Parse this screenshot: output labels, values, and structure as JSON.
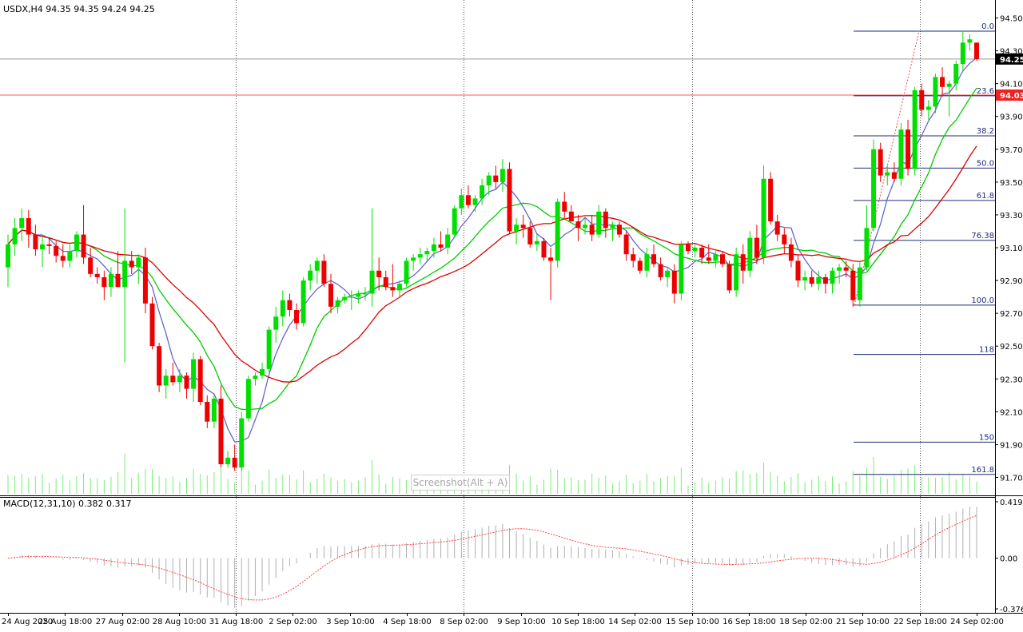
{
  "header": {
    "symbol_line": "USDX,H4  94.35 94.35 94.24 94.25",
    "macd_line": "MACD(12,31,10) 0.382 0.317"
  },
  "overlay": {
    "label": "Screenshot(Alt + A)"
  },
  "colors": {
    "bull": "#00e000",
    "bear": "#ee0000",
    "ma_fast": "#6666cc",
    "ma_mid": "#00cc00",
    "ma_slow": "#dd0000",
    "fib": "#1e2a78",
    "volume": "#77ee77",
    "hline_red": "#ff5555",
    "hline_gray": "#999999",
    "macd_hist": "#b0b0b0",
    "macd_signal": "#ff4444",
    "tag_current_bg": "#000000",
    "tag_red_bg": "#ee2222"
  },
  "chart_data": [
    {
      "type": "candlestick",
      "title": "USDX,H4",
      "ohlc_header": {
        "open": 94.35,
        "high": 94.35,
        "low": 94.24,
        "close": 94.25
      },
      "ylim": [
        91.6,
        94.6
      ],
      "y_ticks": [
        "94.50",
        "94.30",
        "94.10",
        "93.90",
        "93.70",
        "93.50",
        "93.30",
        "93.10",
        "92.90",
        "92.70",
        "92.50",
        "92.30",
        "92.10",
        "91.90",
        "91.70"
      ],
      "x_tick_labels": [
        "24 Aug 2020",
        "25 Aug 18:00",
        "27 Aug 02:00",
        "28 Aug 10:00",
        "31 Aug 18:00",
        "2 Sep 02:00",
        "3 Sep 10:00",
        "4 Sep 18:00",
        "8 Sep 02:00",
        "9 Sep 10:00",
        "10 Sep 18:00",
        "14 Sep 02:00",
        "15 Sep 10:00",
        "16 Sep 18:00",
        "18 Sep 02:00",
        "21 Sep 10:00",
        "22 Sep 18:00",
        "24 Sep 02:00"
      ],
      "price_tags": [
        {
          "label": "94.25",
          "value": 94.25,
          "kind": "current"
        },
        {
          "label": "94.03",
          "value": 94.03,
          "kind": "line"
        }
      ],
      "fibonacci": {
        "high": 94.42,
        "low": 92.75,
        "levels": [
          "0.0",
          "23.6",
          "38.2",
          "50.0",
          "61.8",
          "76.38",
          "100.0",
          "118",
          "150",
          "161.8"
        ]
      },
      "candles": [
        {
          "o": 92.98,
          "h": 93.18,
          "l": 92.86,
          "c": 93.12
        },
        {
          "o": 93.12,
          "h": 93.28,
          "l": 93.05,
          "c": 93.22
        },
        {
          "o": 93.22,
          "h": 93.34,
          "l": 93.14,
          "c": 93.28
        },
        {
          "o": 93.28,
          "h": 93.33,
          "l": 93.1,
          "c": 93.18
        },
        {
          "o": 93.18,
          "h": 93.24,
          "l": 93.05,
          "c": 93.09
        },
        {
          "o": 93.09,
          "h": 93.16,
          "l": 92.98,
          "c": 93.12
        },
        {
          "o": 93.12,
          "h": 93.16,
          "l": 93.06,
          "c": 93.11
        },
        {
          "o": 93.11,
          "h": 93.14,
          "l": 93.01,
          "c": 93.05
        },
        {
          "o": 93.05,
          "h": 93.12,
          "l": 92.98,
          "c": 93.02
        },
        {
          "o": 93.02,
          "h": 93.12,
          "l": 92.98,
          "c": 93.08
        },
        {
          "o": 93.08,
          "h": 93.2,
          "l": 93.04,
          "c": 93.18
        },
        {
          "o": 93.18,
          "h": 93.36,
          "l": 93.0,
          "c": 93.04
        },
        {
          "o": 93.04,
          "h": 93.1,
          "l": 92.92,
          "c": 92.94
        },
        {
          "o": 92.94,
          "h": 92.98,
          "l": 92.88,
          "c": 92.92
        },
        {
          "o": 92.92,
          "h": 92.96,
          "l": 92.78,
          "c": 92.86
        },
        {
          "o": 92.86,
          "h": 92.98,
          "l": 92.8,
          "c": 92.94
        },
        {
          "o": 92.94,
          "h": 93.08,
          "l": 92.86,
          "c": 92.86
        },
        {
          "o": 92.86,
          "h": 93.34,
          "l": 92.4,
          "c": 93.02
        },
        {
          "o": 93.02,
          "h": 93.08,
          "l": 92.94,
          "c": 92.98
        },
        {
          "o": 92.98,
          "h": 93.06,
          "l": 92.88,
          "c": 93.04
        },
        {
          "o": 93.04,
          "h": 93.1,
          "l": 92.7,
          "c": 92.76
        },
        {
          "o": 92.76,
          "h": 92.8,
          "l": 92.48,
          "c": 92.5
        },
        {
          "o": 92.5,
          "h": 92.52,
          "l": 92.22,
          "c": 92.26
        },
        {
          "o": 92.26,
          "h": 92.36,
          "l": 92.18,
          "c": 92.32
        },
        {
          "o": 92.32,
          "h": 92.4,
          "l": 92.26,
          "c": 92.28
        },
        {
          "o": 92.28,
          "h": 92.36,
          "l": 92.22,
          "c": 92.32
        },
        {
          "o": 92.32,
          "h": 92.34,
          "l": 92.18,
          "c": 92.24
        },
        {
          "o": 92.24,
          "h": 92.46,
          "l": 92.16,
          "c": 92.42
        },
        {
          "o": 92.42,
          "h": 92.44,
          "l": 92.14,
          "c": 92.16
        },
        {
          "o": 92.16,
          "h": 92.2,
          "l": 92.0,
          "c": 92.04
        },
        {
          "o": 92.04,
          "h": 92.2,
          "l": 92.0,
          "c": 92.18
        },
        {
          "o": 92.18,
          "h": 92.26,
          "l": 91.76,
          "c": 91.78
        },
        {
          "o": 91.78,
          "h": 91.86,
          "l": 91.76,
          "c": 91.82
        },
        {
          "o": 91.82,
          "h": 91.9,
          "l": 91.74,
          "c": 91.76
        },
        {
          "o": 91.76,
          "h": 92.1,
          "l": 91.74,
          "c": 92.06
        },
        {
          "o": 92.06,
          "h": 92.32,
          "l": 92.04,
          "c": 92.3
        },
        {
          "o": 92.3,
          "h": 92.34,
          "l": 92.26,
          "c": 92.32
        },
        {
          "o": 92.32,
          "h": 92.4,
          "l": 92.3,
          "c": 92.36
        },
        {
          "o": 92.36,
          "h": 92.62,
          "l": 92.34,
          "c": 92.6
        },
        {
          "o": 92.6,
          "h": 92.74,
          "l": 92.52,
          "c": 92.68
        },
        {
          "o": 92.68,
          "h": 92.84,
          "l": 92.62,
          "c": 92.78
        },
        {
          "o": 92.78,
          "h": 92.82,
          "l": 92.68,
          "c": 92.72
        },
        {
          "o": 92.72,
          "h": 92.76,
          "l": 92.6,
          "c": 92.64
        },
        {
          "o": 92.64,
          "h": 92.92,
          "l": 92.62,
          "c": 92.9
        },
        {
          "o": 92.9,
          "h": 93.0,
          "l": 92.84,
          "c": 92.96
        },
        {
          "o": 92.96,
          "h": 93.04,
          "l": 92.88,
          "c": 93.02
        },
        {
          "o": 93.02,
          "h": 93.06,
          "l": 92.86,
          "c": 92.88
        },
        {
          "o": 92.88,
          "h": 92.94,
          "l": 92.7,
          "c": 92.74
        },
        {
          "o": 92.74,
          "h": 92.8,
          "l": 92.7,
          "c": 92.78
        },
        {
          "o": 92.78,
          "h": 92.82,
          "l": 92.76,
          "c": 92.8
        },
        {
          "o": 92.8,
          "h": 92.84,
          "l": 92.72,
          "c": 92.8
        },
        {
          "o": 92.8,
          "h": 92.84,
          "l": 92.76,
          "c": 92.82
        },
        {
          "o": 92.82,
          "h": 92.86,
          "l": 92.78,
          "c": 92.82
        },
        {
          "o": 92.82,
          "h": 93.34,
          "l": 92.74,
          "c": 92.96
        },
        {
          "o": 92.96,
          "h": 93.04,
          "l": 92.84,
          "c": 92.92
        },
        {
          "o": 92.92,
          "h": 92.96,
          "l": 92.84,
          "c": 92.86
        },
        {
          "o": 92.86,
          "h": 93.0,
          "l": 92.8,
          "c": 92.84
        },
        {
          "o": 92.84,
          "h": 92.9,
          "l": 92.8,
          "c": 92.88
        },
        {
          "o": 92.88,
          "h": 93.04,
          "l": 92.86,
          "c": 93.02
        },
        {
          "o": 93.02,
          "h": 93.06,
          "l": 92.96,
          "c": 93.04
        },
        {
          "o": 93.04,
          "h": 93.1,
          "l": 93.0,
          "c": 93.06
        },
        {
          "o": 93.06,
          "h": 93.1,
          "l": 93.02,
          "c": 93.08
        },
        {
          "o": 93.08,
          "h": 93.16,
          "l": 93.04,
          "c": 93.12
        },
        {
          "o": 93.12,
          "h": 93.2,
          "l": 93.08,
          "c": 93.1
        },
        {
          "o": 93.1,
          "h": 93.22,
          "l": 93.06,
          "c": 93.18
        },
        {
          "o": 93.18,
          "h": 93.36,
          "l": 93.16,
          "c": 93.34
        },
        {
          "o": 93.34,
          "h": 93.46,
          "l": 93.3,
          "c": 93.42
        },
        {
          "o": 93.42,
          "h": 93.48,
          "l": 93.34,
          "c": 93.36
        },
        {
          "o": 93.36,
          "h": 93.42,
          "l": 93.32,
          "c": 93.4
        },
        {
          "o": 93.4,
          "h": 93.52,
          "l": 93.36,
          "c": 93.48
        },
        {
          "o": 93.48,
          "h": 93.56,
          "l": 93.42,
          "c": 93.54
        },
        {
          "o": 93.54,
          "h": 93.6,
          "l": 93.46,
          "c": 93.5
        },
        {
          "o": 93.5,
          "h": 93.64,
          "l": 93.44,
          "c": 93.58
        },
        {
          "o": 93.58,
          "h": 93.62,
          "l": 93.18,
          "c": 93.2
        },
        {
          "o": 93.2,
          "h": 93.28,
          "l": 93.12,
          "c": 93.24
        },
        {
          "o": 93.24,
          "h": 93.3,
          "l": 93.16,
          "c": 93.22
        },
        {
          "o": 93.22,
          "h": 93.26,
          "l": 93.1,
          "c": 93.12
        },
        {
          "o": 93.12,
          "h": 93.18,
          "l": 93.08,
          "c": 93.14
        },
        {
          "o": 93.14,
          "h": 93.16,
          "l": 93.02,
          "c": 93.04
        },
        {
          "o": 93.04,
          "h": 93.1,
          "l": 92.78,
          "c": 93.02
        },
        {
          "o": 93.02,
          "h": 93.4,
          "l": 92.98,
          "c": 93.38
        },
        {
          "o": 93.38,
          "h": 93.44,
          "l": 93.28,
          "c": 93.32
        },
        {
          "o": 93.32,
          "h": 93.36,
          "l": 93.26,
          "c": 93.26
        },
        {
          "o": 93.26,
          "h": 93.3,
          "l": 93.14,
          "c": 93.22
        },
        {
          "o": 93.22,
          "h": 93.28,
          "l": 93.18,
          "c": 93.24
        },
        {
          "o": 93.24,
          "h": 93.3,
          "l": 93.14,
          "c": 93.18
        },
        {
          "o": 93.18,
          "h": 93.36,
          "l": 93.16,
          "c": 93.32
        },
        {
          "o": 93.32,
          "h": 93.34,
          "l": 93.16,
          "c": 93.22
        },
        {
          "o": 93.22,
          "h": 93.26,
          "l": 93.14,
          "c": 93.24
        },
        {
          "o": 93.24,
          "h": 93.26,
          "l": 93.16,
          "c": 93.18
        },
        {
          "o": 93.18,
          "h": 93.2,
          "l": 93.02,
          "c": 93.06
        },
        {
          "o": 93.06,
          "h": 93.1,
          "l": 92.98,
          "c": 93.02
        },
        {
          "o": 93.02,
          "h": 93.04,
          "l": 92.94,
          "c": 92.96
        },
        {
          "o": 92.96,
          "h": 93.1,
          "l": 92.92,
          "c": 93.06
        },
        {
          "o": 93.06,
          "h": 93.12,
          "l": 92.98,
          "c": 93.0
        },
        {
          "o": 93.0,
          "h": 93.04,
          "l": 92.9,
          "c": 92.92
        },
        {
          "o": 92.92,
          "h": 92.98,
          "l": 92.86,
          "c": 92.96
        },
        {
          "o": 92.96,
          "h": 93.0,
          "l": 92.76,
          "c": 92.82
        },
        {
          "o": 92.82,
          "h": 93.14,
          "l": 92.78,
          "c": 93.12
        },
        {
          "o": 93.12,
          "h": 93.14,
          "l": 93.06,
          "c": 93.08
        },
        {
          "o": 93.08,
          "h": 93.12,
          "l": 93.04,
          "c": 93.1
        },
        {
          "o": 93.1,
          "h": 93.12,
          "l": 93.0,
          "c": 93.04
        },
        {
          "o": 93.04,
          "h": 93.12,
          "l": 93.0,
          "c": 93.02
        },
        {
          "o": 93.02,
          "h": 93.08,
          "l": 92.98,
          "c": 93.06
        },
        {
          "o": 93.06,
          "h": 93.08,
          "l": 92.98,
          "c": 93.0
        },
        {
          "o": 93.0,
          "h": 93.02,
          "l": 92.82,
          "c": 92.84
        },
        {
          "o": 92.84,
          "h": 93.1,
          "l": 92.8,
          "c": 93.06
        },
        {
          "o": 93.06,
          "h": 93.12,
          "l": 92.88,
          "c": 92.96
        },
        {
          "o": 92.96,
          "h": 93.2,
          "l": 92.92,
          "c": 93.16
        },
        {
          "o": 93.16,
          "h": 93.24,
          "l": 93.0,
          "c": 93.04
        },
        {
          "o": 93.04,
          "h": 93.6,
          "l": 93.0,
          "c": 93.52
        },
        {
          "o": 93.52,
          "h": 93.56,
          "l": 93.24,
          "c": 93.26
        },
        {
          "o": 93.26,
          "h": 93.3,
          "l": 93.14,
          "c": 93.18
        },
        {
          "o": 93.18,
          "h": 93.22,
          "l": 93.06,
          "c": 93.12
        },
        {
          "o": 93.12,
          "h": 93.16,
          "l": 92.98,
          "c": 93.02
        },
        {
          "o": 93.02,
          "h": 93.06,
          "l": 92.86,
          "c": 92.9
        },
        {
          "o": 92.9,
          "h": 92.96,
          "l": 92.84,
          "c": 92.92
        },
        {
          "o": 92.92,
          "h": 92.96,
          "l": 92.86,
          "c": 92.88
        },
        {
          "o": 92.88,
          "h": 92.96,
          "l": 92.84,
          "c": 92.92
        },
        {
          "o": 92.92,
          "h": 92.94,
          "l": 92.82,
          "c": 92.88
        },
        {
          "o": 92.88,
          "h": 92.98,
          "l": 92.82,
          "c": 92.96
        },
        {
          "o": 92.96,
          "h": 93.0,
          "l": 92.88,
          "c": 92.98
        },
        {
          "o": 92.98,
          "h": 93.02,
          "l": 92.92,
          "c": 92.96
        },
        {
          "o": 92.96,
          "h": 93.0,
          "l": 92.74,
          "c": 92.78
        },
        {
          "o": 92.78,
          "h": 93.02,
          "l": 92.74,
          "c": 92.98
        },
        {
          "o": 92.98,
          "h": 93.36,
          "l": 92.96,
          "c": 93.22
        },
        {
          "o": 93.22,
          "h": 93.76,
          "l": 93.2,
          "c": 93.7
        },
        {
          "o": 93.7,
          "h": 93.74,
          "l": 93.5,
          "c": 93.54
        },
        {
          "o": 93.54,
          "h": 93.6,
          "l": 93.48,
          "c": 93.56
        },
        {
          "o": 93.56,
          "h": 93.62,
          "l": 93.5,
          "c": 93.52
        },
        {
          "o": 93.52,
          "h": 93.86,
          "l": 93.48,
          "c": 93.82
        },
        {
          "o": 93.82,
          "h": 93.88,
          "l": 93.54,
          "c": 93.58
        },
        {
          "o": 93.58,
          "h": 94.08,
          "l": 93.54,
          "c": 94.06
        },
        {
          "o": 94.06,
          "h": 94.1,
          "l": 93.9,
          "c": 93.94
        },
        {
          "o": 93.94,
          "h": 94.0,
          "l": 93.88,
          "c": 93.96
        },
        {
          "o": 93.96,
          "h": 94.16,
          "l": 93.92,
          "c": 94.14
        },
        {
          "o": 94.14,
          "h": 94.2,
          "l": 94.02,
          "c": 94.08
        },
        {
          "o": 94.08,
          "h": 94.12,
          "l": 93.9,
          "c": 94.1
        },
        {
          "o": 94.1,
          "h": 94.24,
          "l": 94.06,
          "c": 94.22
        },
        {
          "o": 94.22,
          "h": 94.42,
          "l": 94.18,
          "c": 94.35
        },
        {
          "o": 94.35,
          "h": 94.4,
          "l": 94.3,
          "c": 94.37
        },
        {
          "o": 94.35,
          "h": 94.35,
          "l": 94.24,
          "c": 94.25
        }
      ]
    },
    {
      "type": "macd",
      "title": "MACD(12,31,10)",
      "params": [
        12,
        31,
        10
      ],
      "header_values": {
        "macd": 0.382,
        "signal": 0.317
      },
      "ylim": [
        -0.376,
        0.419
      ],
      "y_ticks": [
        "0.419",
        "0.00",
        "-0.376"
      ]
    }
  ]
}
